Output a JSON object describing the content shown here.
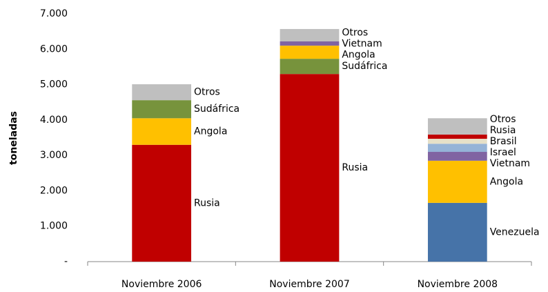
{
  "chart_data": {
    "type": "stacked_bar",
    "y_label": "toneladas",
    "categories": [
      "Noviembre 2006",
      "Noviembre 2007",
      "Noviembre 2008"
    ],
    "stacks": [
      [
        {
          "name": "Rusia",
          "color": "#c00000",
          "value": 3300
        },
        {
          "name": "Angola",
          "color": "#ffc000",
          "value": 750
        },
        {
          "name": "Sudáfrica",
          "color": "#77933c",
          "value": 510
        },
        {
          "name": "Otros",
          "color": "#bfbfbf",
          "value": 450
        }
      ],
      [
        {
          "name": "Rusia",
          "color": "#c00000",
          "value": 5300
        },
        {
          "name": "Sudáfrica",
          "color": "#77933c",
          "value": 430
        },
        {
          "name": "Angola",
          "color": "#ffc000",
          "value": 370
        },
        {
          "name": "Vietnam",
          "color": "#8064a2",
          "value": 120
        },
        {
          "name": "Otros",
          "color": "#bfbfbf",
          "value": 350
        }
      ],
      [
        {
          "name": "Venezuela",
          "color": "#4673a8",
          "value": 1660
        },
        {
          "name": "Angola",
          "color": "#ffc000",
          "value": 1190
        },
        {
          "name": "Vietnam",
          "color": "#8064a2",
          "value": 250
        },
        {
          "name": "Israel",
          "color": "#95b3d7",
          "value": 230
        },
        {
          "name": "Brasil",
          "color": "#e6e0c8",
          "value": 140
        },
        {
          "name": "Rusia",
          "color": "#c00000",
          "value": 120
        },
        {
          "name": "Otros",
          "color": "#bfbfbf",
          "value": 460
        }
      ]
    ],
    "ylim": [
      0,
      7000
    ],
    "yticks": [
      {
        "value": 0,
        "label": "-"
      },
      {
        "value": 1000,
        "label": "1.000"
      },
      {
        "value": 2000,
        "label": "2.000"
      },
      {
        "value": 3000,
        "label": "3.000"
      },
      {
        "value": 4000,
        "label": "4.000"
      },
      {
        "value": 5000,
        "label": "5.000"
      },
      {
        "value": 6000,
        "label": "6.000"
      },
      {
        "value": 7000,
        "label": "7.000"
      }
    ]
  }
}
